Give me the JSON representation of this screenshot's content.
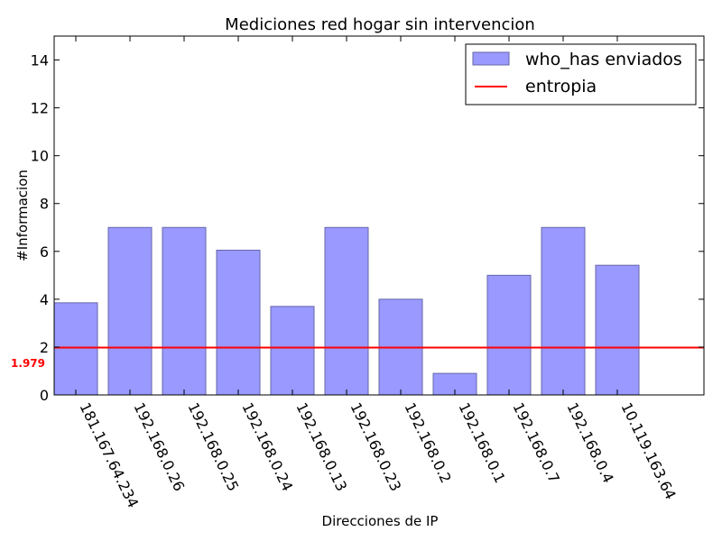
{
  "chart_data": {
    "type": "bar",
    "title": "Mediciones red hogar sin intervencion",
    "xlabel": "Direcciones de IP",
    "ylabel": "#Informacion",
    "categories": [
      "181.167.64.234",
      "192.168.0.26",
      "192.168.0.25",
      "192.168.0.24",
      "192.168.0.13",
      "192.168.0.23",
      "192.168.0.2",
      "192.168.0.1",
      "192.168.0.7",
      "192.168.0.4",
      "10.119.163.64"
    ],
    "series": [
      {
        "name": "who_has enviados",
        "values": [
          3.85,
          7.0,
          7.0,
          6.05,
          3.7,
          7.0,
          4.0,
          0.9,
          5.0,
          7.0,
          5.42
        ],
        "color": "#9999ff",
        "edge_color": "#6666aa"
      }
    ],
    "hline": {
      "name": "entropia",
      "value": 1.979,
      "label": "1.979",
      "color": "#ff0000"
    },
    "ylim": [
      0,
      15
    ],
    "yticks": [
      0,
      2,
      4,
      6,
      8,
      10,
      12,
      14
    ],
    "grid": false,
    "legend_position": "top-right"
  }
}
